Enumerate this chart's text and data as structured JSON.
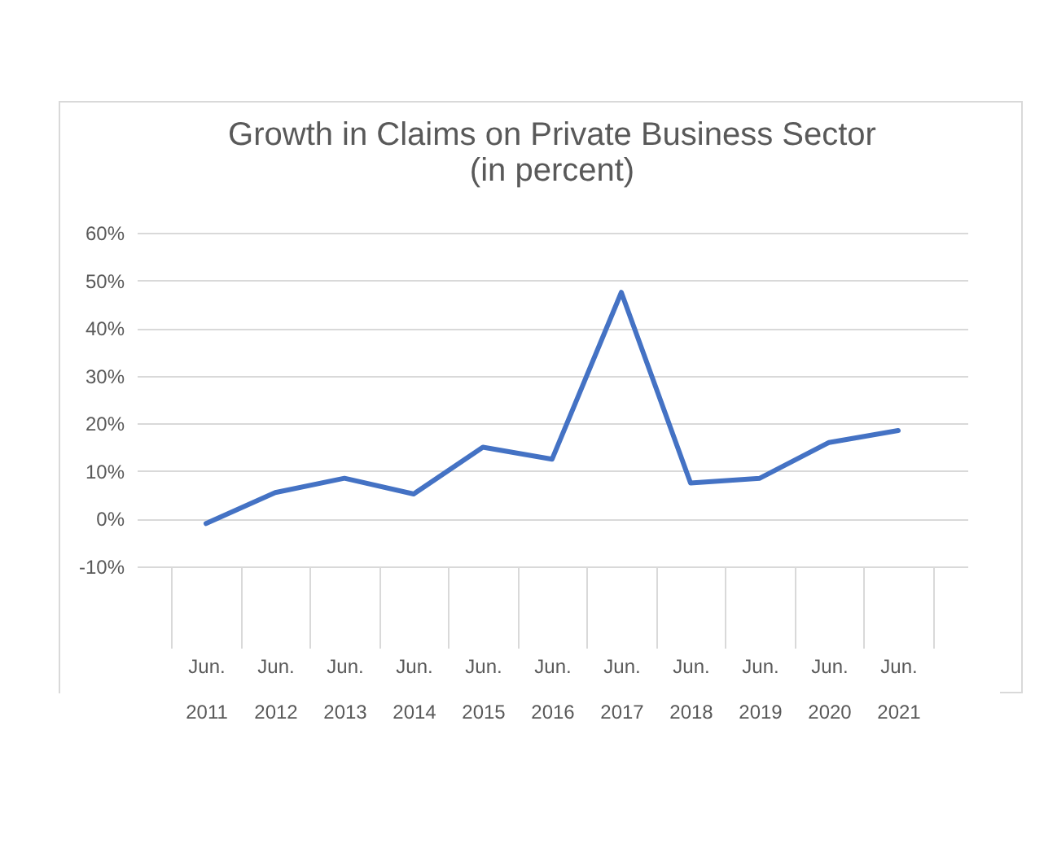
{
  "chart_data": {
    "type": "line",
    "title": [
      "Growth in Claims on Private Business Sector",
      "(in percent)"
    ],
    "categories": [
      "Jun. 2011",
      "Jun. 2012",
      "Jun. 2013",
      "Jun. 2014",
      "Jun. 2015",
      "Jun. 2016",
      "Jun. 2017",
      "Jun. 2018",
      "Jun. 2019",
      "Jun. 2020",
      "Jun. 2021"
    ],
    "series": [
      {
        "color": "#4472c4",
        "values": [
          -1,
          5.5,
          8.5,
          5.2,
          15,
          12.5,
          47.5,
          7.5,
          8.5,
          16,
          18.5
        ]
      }
    ],
    "ylim": [
      -10,
      60
    ],
    "yticks": [
      {
        "value": -10,
        "label": "-10%"
      },
      {
        "value": 0,
        "label": "0%"
      },
      {
        "value": 10,
        "label": "10%"
      },
      {
        "value": 20,
        "label": "20%"
      },
      {
        "value": 30,
        "label": "30%"
      },
      {
        "value": 40,
        "label": "40%"
      },
      {
        "value": 50,
        "label": "50%"
      },
      {
        "value": 60,
        "label": "60%"
      }
    ],
    "grid": "y",
    "marker": "none",
    "line_style": "solid"
  }
}
